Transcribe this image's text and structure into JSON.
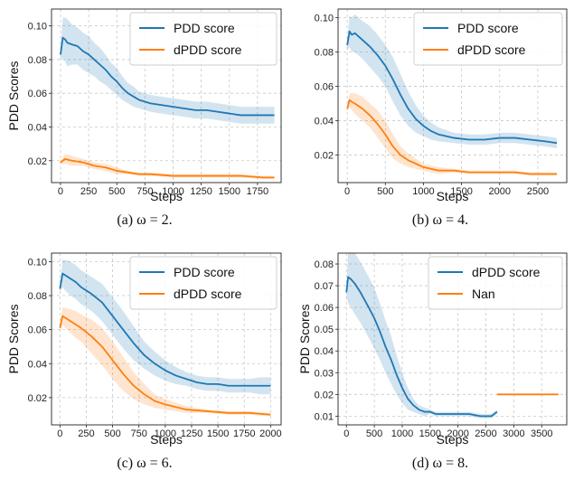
{
  "colors": {
    "series1": "#1f77b4",
    "series2": "#ff7f0e"
  },
  "chart_data": [
    {
      "type": "line",
      "caption": "(a) ω = 2.",
      "xlabel": "Steps",
      "ylabel": "PDD Scores",
      "xlim": [
        -80,
        1960
      ],
      "ylim": [
        0.007,
        0.11
      ],
      "xticks": [
        0,
        250,
        500,
        750,
        1000,
        1250,
        1500,
        1750
      ],
      "xtick_labels": [
        "0",
        "250",
        "500",
        "750",
        "1000",
        "1250",
        "1500",
        "1750"
      ],
      "yticks": [
        0.02,
        0.04,
        0.06,
        0.08,
        0.1
      ],
      "ytick_labels": [
        "0.02",
        "0.04",
        "0.06",
        "0.08",
        "0.10"
      ],
      "grid": true,
      "legend_position": "top-right",
      "series": [
        {
          "name": "PDD score",
          "color": "#1f77b4",
          "x": [
            0,
            20,
            40,
            60,
            100,
            150,
            200,
            250,
            300,
            350,
            400,
            450,
            500,
            550,
            600,
            650,
            700,
            800,
            900,
            1000,
            1100,
            1200,
            1300,
            1400,
            1500,
            1600,
            1700,
            1800,
            1900
          ],
          "y": [
            0.083,
            0.093,
            0.092,
            0.09,
            0.089,
            0.088,
            0.085,
            0.083,
            0.08,
            0.077,
            0.074,
            0.07,
            0.067,
            0.063,
            0.06,
            0.058,
            0.056,
            0.054,
            0.053,
            0.052,
            0.051,
            0.05,
            0.05,
            0.049,
            0.048,
            0.047,
            0.047,
            0.047,
            0.047
          ],
          "band": [
            0.003,
            0.012,
            0.013,
            0.014,
            0.012,
            0.011,
            0.011,
            0.011,
            0.01,
            0.01,
            0.009,
            0.008,
            0.008,
            0.007,
            0.006,
            0.006,
            0.005,
            0.005,
            0.005,
            0.005,
            0.005,
            0.005,
            0.005,
            0.005,
            0.005,
            0.005,
            0.005,
            0.005,
            0.005
          ]
        },
        {
          "name": "dPDD score",
          "color": "#ff7f0e",
          "x": [
            0,
            20,
            40,
            100,
            200,
            300,
            400,
            500,
            600,
            700,
            800,
            1000,
            1200,
            1400,
            1600,
            1800,
            1900
          ],
          "y": [
            0.019,
            0.02,
            0.021,
            0.02,
            0.019,
            0.017,
            0.016,
            0.014,
            0.013,
            0.012,
            0.012,
            0.011,
            0.011,
            0.011,
            0.011,
            0.01,
            0.01
          ],
          "band": [
            0.001,
            0.002,
            0.003,
            0.003,
            0.002,
            0.002,
            0.002,
            0.002,
            0.001,
            0.001,
            0.001,
            0.001,
            0.001,
            0.001,
            0.001,
            0.001,
            0.001
          ]
        }
      ]
    },
    {
      "type": "line",
      "caption": "(b) ω = 4.",
      "xlabel": "Steps",
      "ylabel": "",
      "xlim": [
        -120,
        2880
      ],
      "ylim": [
        0.004,
        0.105
      ],
      "xticks": [
        0,
        500,
        1000,
        1500,
        2000,
        2500
      ],
      "xtick_labels": [
        "0",
        "500",
        "1000",
        "1500",
        "2000",
        "2500"
      ],
      "yticks": [
        0.02,
        0.04,
        0.06,
        0.08,
        0.1
      ],
      "ytick_labels": [
        "0.02",
        "0.04",
        "0.06",
        "0.08",
        "0.10"
      ],
      "grid": true,
      "legend_position": "top-right",
      "series": [
        {
          "name": "PDD score",
          "color": "#1f77b4",
          "x": [
            0,
            30,
            60,
            100,
            150,
            200,
            300,
            400,
            500,
            600,
            700,
            800,
            900,
            1000,
            1100,
            1200,
            1400,
            1600,
            1800,
            2000,
            2200,
            2400,
            2600,
            2750
          ],
          "y": [
            0.084,
            0.092,
            0.09,
            0.091,
            0.089,
            0.087,
            0.083,
            0.078,
            0.072,
            0.064,
            0.055,
            0.047,
            0.041,
            0.037,
            0.034,
            0.032,
            0.03,
            0.029,
            0.029,
            0.03,
            0.03,
            0.029,
            0.028,
            0.027
          ],
          "band": [
            0.003,
            0.009,
            0.01,
            0.011,
            0.011,
            0.011,
            0.012,
            0.012,
            0.012,
            0.013,
            0.012,
            0.01,
            0.008,
            0.006,
            0.005,
            0.004,
            0.003,
            0.003,
            0.003,
            0.003,
            0.003,
            0.003,
            0.003,
            0.003
          ]
        },
        {
          "name": "dPDD score",
          "color": "#ff7f0e",
          "x": [
            0,
            30,
            60,
            100,
            200,
            300,
            400,
            500,
            600,
            700,
            800,
            900,
            1000,
            1200,
            1400,
            1600,
            1800,
            2000,
            2200,
            2400,
            2600,
            2750
          ],
          "y": [
            0.047,
            0.052,
            0.051,
            0.05,
            0.047,
            0.043,
            0.038,
            0.032,
            0.025,
            0.02,
            0.017,
            0.015,
            0.013,
            0.011,
            0.011,
            0.01,
            0.01,
            0.01,
            0.01,
            0.009,
            0.009,
            0.009
          ],
          "band": [
            0.002,
            0.004,
            0.005,
            0.006,
            0.007,
            0.007,
            0.008,
            0.008,
            0.007,
            0.005,
            0.004,
            0.003,
            0.002,
            0.002,
            0.001,
            0.001,
            0.001,
            0.001,
            0.001,
            0.001,
            0.001,
            0.001
          ]
        }
      ]
    },
    {
      "type": "line",
      "caption": "(c) ω = 6.",
      "xlabel": "Steps",
      "ylabel": "PDD Scores",
      "xlim": [
        -80,
        2100
      ],
      "ylim": [
        0.004,
        0.105
      ],
      "xticks": [
        0,
        250,
        500,
        750,
        1000,
        1250,
        1500,
        1750,
        2000
      ],
      "xtick_labels": [
        "0",
        "250",
        "500",
        "750",
        "1000",
        "1250",
        "1500",
        "1750",
        "2000"
      ],
      "yticks": [
        0.02,
        0.04,
        0.06,
        0.08,
        0.1
      ],
      "ytick_labels": [
        "0.02",
        "0.04",
        "0.06",
        "0.08",
        "0.10"
      ],
      "grid": true,
      "legend_position": "top-right",
      "series": [
        {
          "name": "PDD score",
          "color": "#1f77b4",
          "x": [
            0,
            25,
            50,
            100,
            150,
            200,
            300,
            400,
            500,
            600,
            700,
            800,
            900,
            1000,
            1100,
            1200,
            1300,
            1400,
            1500,
            1600,
            1700,
            1800,
            1900,
            2000
          ],
          "y": [
            0.084,
            0.093,
            0.092,
            0.09,
            0.088,
            0.085,
            0.081,
            0.076,
            0.068,
            0.06,
            0.052,
            0.045,
            0.04,
            0.036,
            0.033,
            0.031,
            0.029,
            0.028,
            0.028,
            0.027,
            0.027,
            0.027,
            0.027,
            0.027
          ],
          "band": [
            0.002,
            0.008,
            0.009,
            0.01,
            0.01,
            0.01,
            0.01,
            0.011,
            0.011,
            0.011,
            0.01,
            0.008,
            0.007,
            0.006,
            0.005,
            0.004,
            0.004,
            0.004,
            0.004,
            0.004,
            0.004,
            0.004,
            0.005,
            0.005
          ]
        },
        {
          "name": "dPDD score",
          "color": "#ff7f0e",
          "x": [
            0,
            25,
            50,
            100,
            150,
            200,
            300,
            400,
            500,
            600,
            700,
            800,
            900,
            1000,
            1200,
            1400,
            1600,
            1800,
            2000
          ],
          "y": [
            0.061,
            0.068,
            0.067,
            0.065,
            0.063,
            0.061,
            0.056,
            0.05,
            0.042,
            0.034,
            0.027,
            0.022,
            0.018,
            0.016,
            0.013,
            0.012,
            0.011,
            0.011,
            0.01
          ],
          "band": [
            0.002,
            0.005,
            0.006,
            0.007,
            0.008,
            0.008,
            0.01,
            0.011,
            0.011,
            0.01,
            0.008,
            0.006,
            0.004,
            0.003,
            0.002,
            0.001,
            0.001,
            0.001,
            0.001
          ]
        }
      ]
    },
    {
      "type": "line",
      "caption": "(d) ω = 8.",
      "xlabel": "Steps",
      "ylabel": "PDD Scores",
      "xlim": [
        -150,
        3950
      ],
      "ylim": [
        0.006,
        0.085
      ],
      "xticks": [
        0,
        500,
        1000,
        1500,
        2000,
        2500,
        3000,
        3500
      ],
      "xtick_labels": [
        "0",
        "500",
        "1000",
        "1500",
        "2000",
        "2500",
        "3000",
        "3500"
      ],
      "yticks": [
        0.01,
        0.02,
        0.03,
        0.04,
        0.05,
        0.06,
        0.07,
        0.08
      ],
      "ytick_labels": [
        "0.01",
        "0.02",
        "0.03",
        "0.04",
        "0.05",
        "0.06",
        "0.07",
        "0.08"
      ],
      "grid": true,
      "legend_position": "top-right",
      "series": [
        {
          "name": "dPDD score",
          "color": "#1f77b4",
          "x": [
            0,
            30,
            80,
            150,
            250,
            400,
            500,
            600,
            700,
            800,
            900,
            1000,
            1100,
            1200,
            1300,
            1400,
            1500,
            1600,
            1800,
            2000,
            2200,
            2400,
            2600,
            2650,
            2700
          ],
          "y": [
            0.067,
            0.074,
            0.073,
            0.071,
            0.067,
            0.06,
            0.055,
            0.049,
            0.042,
            0.036,
            0.029,
            0.023,
            0.018,
            0.015,
            0.013,
            0.012,
            0.012,
            0.011,
            0.011,
            0.011,
            0.011,
            0.01,
            0.01,
            0.011,
            0.012
          ],
          "band": [
            0.002,
            0.012,
            0.013,
            0.014,
            0.014,
            0.014,
            0.014,
            0.013,
            0.012,
            0.011,
            0.009,
            0.007,
            0.005,
            0.003,
            0.002,
            0.002,
            0.001,
            0.001,
            0.001,
            0.001,
            0.001,
            0.001,
            0.001,
            0.001,
            0.001
          ]
        },
        {
          "name": "Nan",
          "color": "#ff7f0e",
          "x": [
            2700,
            3800
          ],
          "y": [
            0.02,
            0.02
          ],
          "band": [
            0,
            0
          ]
        }
      ]
    }
  ]
}
